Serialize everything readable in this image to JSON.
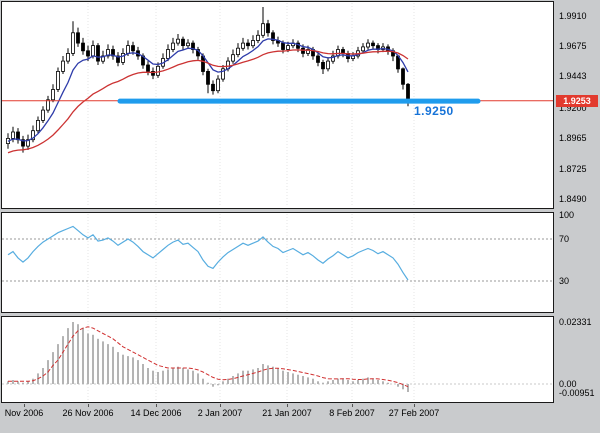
{
  "window": {
    "description": "forex candlestick chart with oscillator and MACD panels"
  },
  "chart_data": [
    {
      "type": "candlestick",
      "panel": "price",
      "x_axis_labels": [
        "Nov 2006",
        "26 Nov 2006",
        "14 Dec 2006",
        "2 Jan 2007",
        "21 Jan 2007",
        "8 Feb 2007",
        "27 Feb 2007"
      ],
      "y_axis_ticks": [
        "1.9910",
        "1.9675",
        "1.9443",
        "1.9200",
        "1.8965",
        "1.8725",
        "1.8490"
      ],
      "ylim": [
        1.849,
        1.991
      ],
      "current_price": 1.9253,
      "current_price_label": "1.9253",
      "current_price_bg": "#e23a2e",
      "current_price_fg": "#ffffff",
      "price_line_color": "#e23a2e",
      "support_level": 1.925,
      "support_label": "1.9250",
      "support_line_color": "#1f9ced",
      "support_label_color": "#1673d8",
      "candle_color": "#000000",
      "overlays": [
        {
          "name": "fast-ma",
          "type": "ema",
          "alpha": 0.25,
          "seed": 1.893,
          "color": "#2e3caa"
        },
        {
          "name": "slow-ma",
          "type": "ema",
          "alpha": 0.08,
          "seed": 1.884,
          "color": "#cc3333"
        }
      ],
      "candles_ohlc": [
        [
          1.892,
          1.9,
          1.888,
          1.896
        ],
        [
          1.896,
          1.905,
          1.893,
          1.901
        ],
        [
          1.901,
          1.904,
          1.892,
          1.895
        ],
        [
          1.895,
          1.898,
          1.885,
          1.89
        ],
        [
          1.89,
          1.899,
          1.887,
          1.895
        ],
        [
          1.895,
          1.906,
          1.893,
          1.902
        ],
        [
          1.902,
          1.913,
          1.9,
          1.91
        ],
        [
          1.91,
          1.921,
          1.908,
          1.918
        ],
        [
          1.918,
          1.929,
          1.916,
          1.926
        ],
        [
          1.926,
          1.938,
          1.924,
          1.934
        ],
        [
          1.934,
          1.951,
          1.932,
          1.948
        ],
        [
          1.948,
          1.96,
          1.946,
          1.956
        ],
        [
          1.956,
          1.966,
          1.954,
          1.962
        ],
        [
          1.962,
          1.987,
          1.96,
          1.978
        ],
        [
          1.978,
          1.982,
          1.967,
          1.97
        ],
        [
          1.97,
          1.974,
          1.961,
          1.964
        ],
        [
          1.964,
          1.968,
          1.956,
          1.96
        ],
        [
          1.96,
          1.972,
          1.958,
          1.968
        ],
        [
          1.968,
          1.97,
          1.953,
          1.956
        ],
        [
          1.956,
          1.964,
          1.954,
          1.96
        ],
        [
          1.96,
          1.969,
          1.958,
          1.965
        ],
        [
          1.965,
          1.968,
          1.957,
          1.96
        ],
        [
          1.96,
          1.963,
          1.952,
          1.955
        ],
        [
          1.955,
          1.966,
          1.953,
          1.962
        ],
        [
          1.962,
          1.972,
          1.96,
          1.968
        ],
        [
          1.968,
          1.971,
          1.961,
          1.964
        ],
        [
          1.964,
          1.967,
          1.957,
          1.96
        ],
        [
          1.96,
          1.962,
          1.95,
          1.953
        ],
        [
          1.953,
          1.956,
          1.945,
          1.948
        ],
        [
          1.948,
          1.951,
          1.942,
          1.945
        ],
        [
          1.945,
          1.955,
          1.943,
          1.952
        ],
        [
          1.952,
          1.962,
          1.95,
          1.958
        ],
        [
          1.958,
          1.969,
          1.956,
          1.965
        ],
        [
          1.965,
          1.974,
          1.963,
          1.97
        ],
        [
          1.97,
          1.977,
          1.968,
          1.973
        ],
        [
          1.973,
          1.975,
          1.965,
          1.968
        ],
        [
          1.968,
          1.973,
          1.966,
          1.97
        ],
        [
          1.97,
          1.972,
          1.962,
          1.965
        ],
        [
          1.965,
          1.967,
          1.957,
          1.96
        ],
        [
          1.96,
          1.962,
          1.945,
          1.948
        ],
        [
          1.948,
          1.95,
          1.931,
          1.938
        ],
        [
          1.938,
          1.941,
          1.93,
          1.933
        ],
        [
          1.933,
          1.945,
          1.931,
          1.942
        ],
        [
          1.942,
          1.953,
          1.94,
          1.95
        ],
        [
          1.95,
          1.959,
          1.948,
          1.956
        ],
        [
          1.956,
          1.965,
          1.954,
          1.961
        ],
        [
          1.961,
          1.97,
          1.959,
          1.966
        ],
        [
          1.966,
          1.974,
          1.964,
          1.97
        ],
        [
          1.97,
          1.973,
          1.965,
          1.968
        ],
        [
          1.968,
          1.976,
          1.966,
          1.972
        ],
        [
          1.972,
          1.98,
          1.97,
          1.976
        ],
        [
          1.976,
          1.998,
          1.974,
          1.985
        ],
        [
          1.985,
          1.988,
          1.975,
          1.978
        ],
        [
          1.978,
          1.98,
          1.969,
          1.972
        ],
        [
          1.972,
          1.975,
          1.967,
          1.97
        ],
        [
          1.97,
          1.972,
          1.962,
          1.965
        ],
        [
          1.965,
          1.971,
          1.963,
          1.968
        ],
        [
          1.968,
          1.973,
          1.966,
          1.97
        ],
        [
          1.97,
          1.972,
          1.963,
          1.966
        ],
        [
          1.966,
          1.969,
          1.959,
          1.962
        ],
        [
          1.962,
          1.968,
          1.96,
          1.965
        ],
        [
          1.965,
          1.967,
          1.957,
          1.96
        ],
        [
          1.96,
          1.962,
          1.952,
          1.955
        ],
        [
          1.955,
          1.957,
          1.946,
          1.95
        ],
        [
          1.95,
          1.959,
          1.948,
          1.956
        ],
        [
          1.956,
          1.964,
          1.954,
          1.96
        ],
        [
          1.96,
          1.968,
          1.958,
          1.965
        ],
        [
          1.965,
          1.967,
          1.959,
          1.962
        ],
        [
          1.962,
          1.964,
          1.955,
          1.958
        ],
        [
          1.958,
          1.963,
          1.956,
          1.96
        ],
        [
          1.96,
          1.967,
          1.958,
          1.964
        ],
        [
          1.964,
          1.97,
          1.962,
          1.967
        ],
        [
          1.967,
          1.973,
          1.965,
          1.97
        ],
        [
          1.97,
          1.972,
          1.965,
          1.968
        ],
        [
          1.968,
          1.97,
          1.962,
          1.965
        ],
        [
          1.965,
          1.97,
          1.963,
          1.967
        ],
        [
          1.967,
          1.969,
          1.961,
          1.964
        ],
        [
          1.964,
          1.966,
          1.956,
          1.96
        ],
        [
          1.96,
          1.961,
          1.947,
          1.95
        ],
        [
          1.95,
          1.951,
          1.934,
          1.938
        ],
        [
          1.938,
          1.939,
          1.921,
          1.926
        ]
      ]
    },
    {
      "type": "line",
      "panel": "oscillator",
      "name": "oscillator",
      "y_axis_ticks": [
        "100",
        "70",
        "30"
      ],
      "levels": [
        70,
        30
      ],
      "color": "#57ade0",
      "values": [
        55,
        58,
        52,
        48,
        52,
        58,
        63,
        67,
        70,
        73,
        76,
        78,
        80,
        82,
        78,
        74,
        71,
        74,
        68,
        69,
        71,
        68,
        64,
        67,
        70,
        67,
        63,
        58,
        55,
        52,
        56,
        60,
        64,
        67,
        69,
        65,
        66,
        62,
        58,
        50,
        44,
        42,
        48,
        53,
        57,
        60,
        63,
        66,
        64,
        66,
        68,
        72,
        67,
        63,
        61,
        57,
        59,
        61,
        58,
        55,
        57,
        54,
        50,
        47,
        51,
        54,
        58,
        55,
        52,
        54,
        57,
        59,
        61,
        59,
        56,
        58,
        55,
        52,
        46,
        38,
        31
      ]
    },
    {
      "type": "bar",
      "panel": "macd",
      "name": "macd-histogram-with-signal",
      "y_axis_ticks": [
        "0.02331",
        "0.00",
        "-0.00951"
      ],
      "bar_color": "#b4b4b4",
      "signal_color": "#d03030",
      "histogram": [
        0.001,
        0.0015,
        0.001,
        0.0005,
        0.001,
        0.002,
        0.004,
        0.006,
        0.009,
        0.012,
        0.015,
        0.018,
        0.021,
        0.0233,
        0.0225,
        0.021,
        0.019,
        0.0185,
        0.017,
        0.016,
        0.015,
        0.014,
        0.012,
        0.011,
        0.0105,
        0.01,
        0.009,
        0.0075,
        0.006,
        0.005,
        0.0045,
        0.005,
        0.0055,
        0.006,
        0.0065,
        0.006,
        0.0055,
        0.005,
        0.004,
        0.002,
        0.0005,
        -0.001,
        -0.0005,
        0.001,
        0.002,
        0.003,
        0.004,
        0.005,
        0.005,
        0.0055,
        0.006,
        0.0075,
        0.007,
        0.0065,
        0.006,
        0.005,
        0.0045,
        0.004,
        0.0035,
        0.003,
        0.0025,
        0.002,
        0.001,
        0.0005,
        0.001,
        0.0015,
        0.002,
        0.002,
        0.0015,
        0.001,
        0.0015,
        0.002,
        0.0025,
        0.002,
        0.0015,
        0.001,
        0.0005,
        0.0,
        -0.001,
        -0.002,
        -0.003
      ],
      "signal": [
        0.001,
        0.001,
        0.001,
        0.001,
        0.001,
        0.0012,
        0.002,
        0.003,
        0.0045,
        0.007,
        0.009,
        0.012,
        0.015,
        0.018,
        0.02,
        0.021,
        0.0215,
        0.021,
        0.02,
        0.019,
        0.018,
        0.017,
        0.0155,
        0.014,
        0.013,
        0.012,
        0.011,
        0.01,
        0.009,
        0.008,
        0.007,
        0.0065,
        0.006,
        0.006,
        0.006,
        0.006,
        0.006,
        0.0058,
        0.0053,
        0.0045,
        0.0035,
        0.0025,
        0.0018,
        0.0016,
        0.0017,
        0.002,
        0.0025,
        0.003,
        0.0035,
        0.004,
        0.0045,
        0.0052,
        0.0057,
        0.0059,
        0.0059,
        0.0057,
        0.0054,
        0.0051,
        0.0047,
        0.0043,
        0.0039,
        0.0035,
        0.003,
        0.0024,
        0.002,
        0.0019,
        0.0019,
        0.002,
        0.002,
        0.0018,
        0.0017,
        0.0017,
        0.0019,
        0.002,
        0.0019,
        0.0017,
        0.0014,
        0.001,
        0.0005,
        -0.0002,
        -0.001
      ]
    }
  ]
}
